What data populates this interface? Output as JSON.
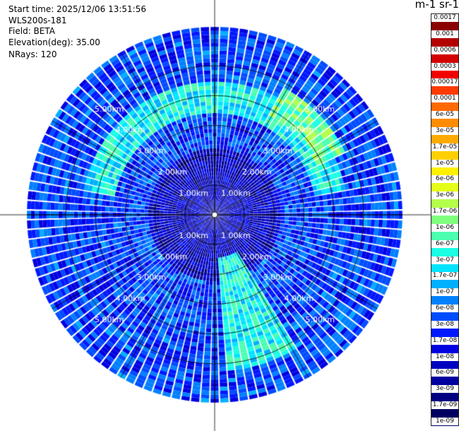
{
  "header": {
    "start_time": "Start time: 2025/12/06 13:51:56",
    "instrument": "WLS200s-181",
    "field": "Field: BETA",
    "elevation": "Elevation(deg): 35.00",
    "nrays": "NRays: 120"
  },
  "colorbar": {
    "title": "m-1 sr-1",
    "labels": [
      "0.0017",
      "0.001",
      "0.0006",
      "0.0003",
      "0.00017",
      "0.0001",
      "6e-05",
      "3e-05",
      "1.7e-05",
      "1e-05",
      "6e-06",
      "3e-06",
      "1.7e-06",
      "1e-06",
      "6e-07",
      "3e-07",
      "1.7e-07",
      "1e-07",
      "6e-08",
      "3e-08",
      "1.7e-08",
      "1e-08",
      "6e-09",
      "3e-09",
      "1.7e-09",
      "1e-09"
    ],
    "colors": [
      "#8b0000",
      "#b30000",
      "#d40000",
      "#f00000",
      "#ff3a00",
      "#ff6a00",
      "#ff8c00",
      "#ffaa00",
      "#ffd000",
      "#fff000",
      "#e6ff1a",
      "#b4ff4a",
      "#80ff7e",
      "#4cffb0",
      "#1affe4",
      "#00e4ff",
      "#00b0ff",
      "#0080ff",
      "#004cff",
      "#0018ff",
      "#0000e0",
      "#0000c0",
      "#0000a0",
      "#000080",
      "#000060"
    ]
  },
  "chart_data": {
    "type": "ppi",
    "field": "BETA",
    "units": "m-1 sr-1",
    "elevation_deg": 35.0,
    "n_rays": 120,
    "range_rings_km": [
      1.0,
      2.0,
      3.0,
      4.0,
      5.0
    ],
    "ring_labels": [
      "1.00km",
      "2.00km",
      "3.00km",
      "4.00km",
      "5.00km"
    ],
    "max_range_km": 6.3,
    "color_scale": "log",
    "color_range": [
      1e-09,
      0.0017
    ],
    "features": [
      {
        "azimuth_range_deg": [
          280,
          80
        ],
        "range_km": [
          3.4,
          4.4
        ],
        "beta": 3e-07
      },
      {
        "azimuth_range_deg": [
          30,
          65
        ],
        "range_km": [
          3.8,
          4.8
        ],
        "beta": 1e-06
      },
      {
        "azimuth_range_deg": [
          150,
          175
        ],
        "range_km": [
          1.5,
          5.2
        ],
        "beta": 3e-07
      }
    ],
    "background_beta": 3e-08,
    "near_range_beta": 6e-09
  }
}
